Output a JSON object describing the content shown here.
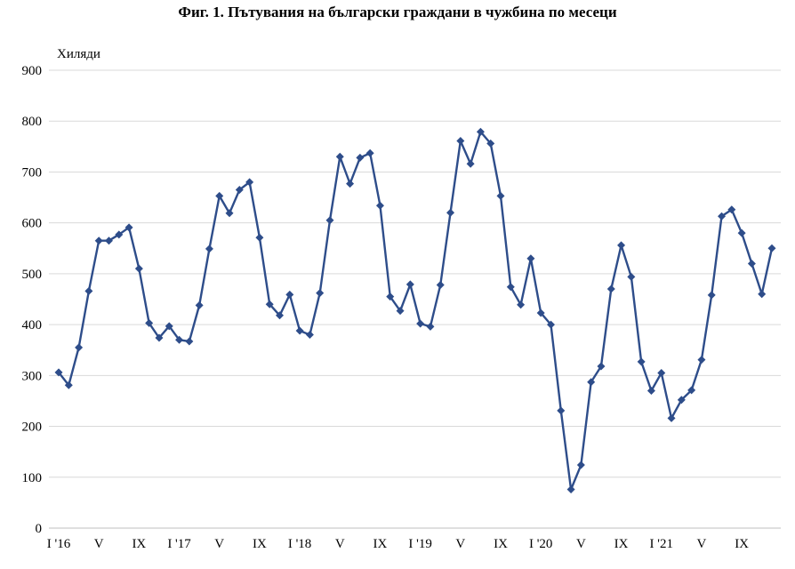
{
  "chart_data": {
    "type": "line",
    "title": "Фиг. 1. Пътувания на български граждани в чужбина по месеци",
    "ylabel": "Хиляди",
    "xlabel": "",
    "ylim": [
      0,
      900
    ],
    "yticks": [
      0,
      100,
      200,
      300,
      400,
      500,
      600,
      700,
      800,
      900
    ],
    "grid": true,
    "x_tick_labels": [
      {
        "index": 0,
        "label": "I '16"
      },
      {
        "index": 4,
        "label": "V"
      },
      {
        "index": 8,
        "label": "IX"
      },
      {
        "index": 12,
        "label": "I '17"
      },
      {
        "index": 16,
        "label": "V"
      },
      {
        "index": 20,
        "label": "IX"
      },
      {
        "index": 24,
        "label": "I '18"
      },
      {
        "index": 28,
        "label": "V"
      },
      {
        "index": 32,
        "label": "IX"
      },
      {
        "index": 36,
        "label": "I '19"
      },
      {
        "index": 40,
        "label": "V"
      },
      {
        "index": 44,
        "label": "IX"
      },
      {
        "index": 48,
        "label": "I '20"
      },
      {
        "index": 52,
        "label": "V"
      },
      {
        "index": 56,
        "label": "IX"
      },
      {
        "index": 60,
        "label": "I '21"
      },
      {
        "index": 64,
        "label": "V"
      },
      {
        "index": 68,
        "label": "IX"
      }
    ],
    "series": [
      {
        "color": "#2e4d8a",
        "marker": "diamond",
        "values": [
          306,
          281,
          355,
          466,
          565,
          565,
          577,
          591,
          510,
          403,
          374,
          397,
          370,
          367,
          438,
          549,
          653,
          619,
          665,
          680,
          571,
          440,
          418,
          459,
          388,
          380,
          462,
          605,
          730,
          677,
          728,
          737,
          634,
          455,
          427,
          479,
          402,
          396,
          478,
          620,
          761,
          716,
          779,
          756,
          653,
          474,
          439,
          530,
          423,
          400,
          231,
          76,
          124,
          287,
          318,
          470,
          556,
          494,
          327,
          270,
          305,
          216,
          252,
          271,
          331,
          458,
          613,
          626,
          580,
          520,
          460,
          550
        ]
      }
    ]
  }
}
